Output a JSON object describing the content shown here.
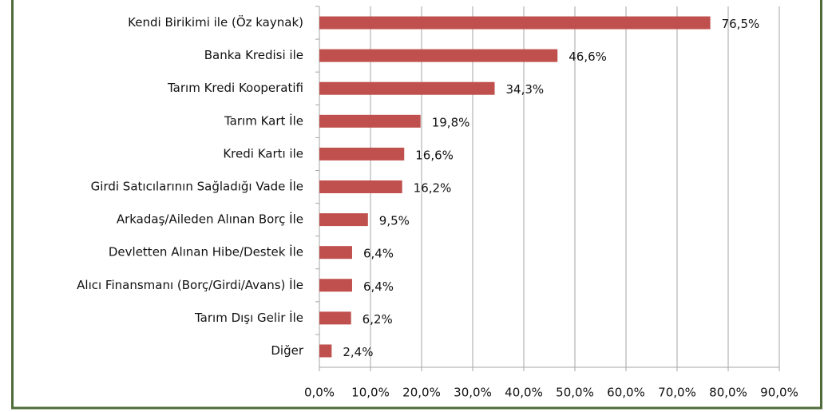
{
  "chart_data": {
    "type": "bar",
    "orientation": "horizontal",
    "categories": [
      "Kendi Birikimi ile (Öz kaynak)",
      "Banka Kredisi ile",
      "Tarım Kredi Kooperatifi",
      "Tarım Kart İle",
      "Kredi Kartı ile",
      "Girdi Satıcılarının Sağladığı Vade İle",
      "Arkadaş/Aileden Alınan Borç İle",
      "Devletten Alınan Hibe/Destek İle",
      "Alıcı Finansmanı (Borç/Girdi/Avans) İle",
      "Tarım Dışı Gelir İle",
      "Diğer"
    ],
    "values": [
      76.5,
      46.6,
      34.3,
      19.8,
      16.6,
      16.2,
      9.5,
      6.4,
      6.4,
      6.2,
      2.4
    ],
    "value_labels": [
      "76,5%",
      "46,6%",
      "34,3%",
      "19,8%",
      "16,6%",
      "16,2%",
      "9,5%",
      "6,4%",
      "6,4%",
      "6,2%",
      "2,4%"
    ],
    "color": "#c0504d",
    "xlim": [
      0,
      90
    ],
    "xticks": [
      {
        "value": 0,
        "label": "0,0%"
      },
      {
        "value": 10,
        "label": "10,0%"
      },
      {
        "value": 20,
        "label": "20,0%"
      },
      {
        "value": 30,
        "label": "30,0%"
      },
      {
        "value": 40,
        "label": "40,0%"
      },
      {
        "value": 50,
        "label": "50,0%"
      },
      {
        "value": 60,
        "label": "60,0%"
      },
      {
        "value": 70,
        "label": "70,0%"
      },
      {
        "value": 80,
        "label": "80,0%"
      },
      {
        "value": 90,
        "label": "90,0%"
      }
    ],
    "grid": true
  }
}
